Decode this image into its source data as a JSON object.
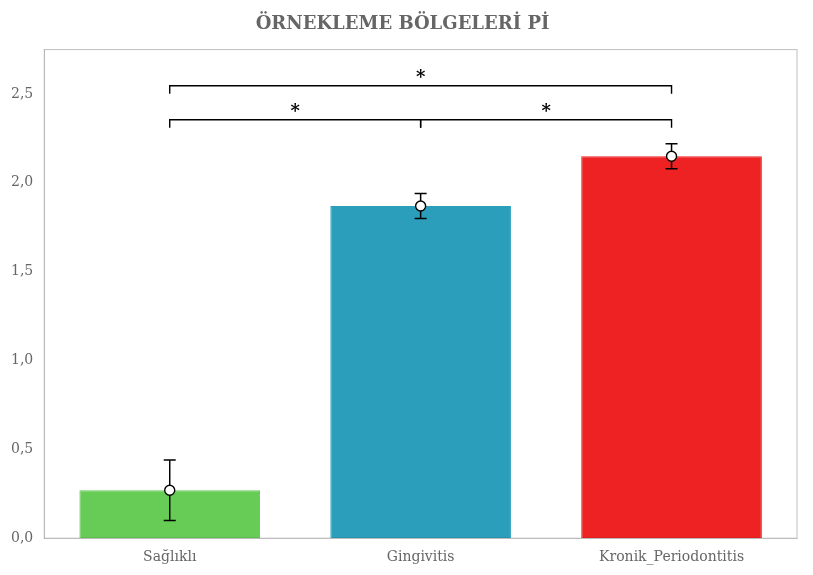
{
  "chart_data": {
    "type": "bar",
    "title": "ÖRNEKLEME BÖLGELERİ Pİ",
    "categories": [
      "Sağlıklı",
      "Gingivitis",
      "Kronik_Periodontitis"
    ],
    "values": [
      0.27,
      1.87,
      2.15
    ],
    "errors": [
      0.17,
      0.07,
      0.07
    ],
    "colors": [
      "#66CC55",
      "#2B9EBB",
      "#EE2222"
    ],
    "ylim": [
      0,
      2.75
    ],
    "yticks": [
      {
        "value": 0.0,
        "label": "0,0"
      },
      {
        "value": 0.5,
        "label": "0,5"
      },
      {
        "value": 1.0,
        "label": "1,0"
      },
      {
        "value": 1.5,
        "label": "1,5"
      },
      {
        "value": 2.0,
        "label": "2,0"
      },
      {
        "value": 2.5,
        "label": "2,5"
      }
    ],
    "grid": false,
    "annotations": [
      {
        "text": "*",
        "from": "Sağlıklı",
        "to": "Kronik_Periodontitis"
      },
      {
        "text": "*",
        "from": "Sağlıklı",
        "to": "Gingivitis"
      },
      {
        "text": "*",
        "from": "Gingivitis",
        "to": "Kronik_Periodontitis"
      }
    ]
  }
}
